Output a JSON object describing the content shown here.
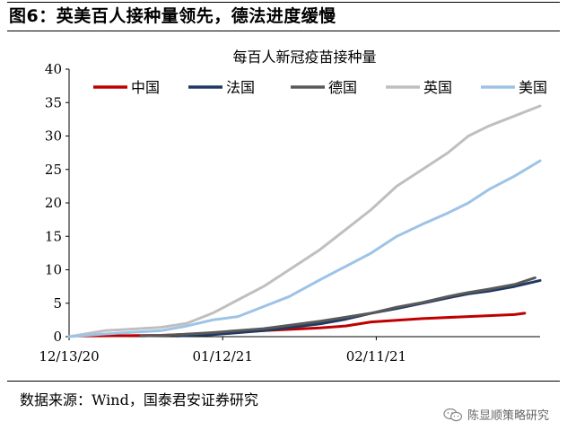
{
  "header": {
    "title": "图6：英美百人接种量领先，德法进度缓慢"
  },
  "source": {
    "text": "数据来源：Wind，国泰君安证券研究"
  },
  "watermark": {
    "text": "陈显顺策略研究",
    "icon": "wechat-icon"
  },
  "chart_data": {
    "type": "line",
    "title": "每百人新冠疫苗接种量",
    "xlabel": "",
    "ylabel": "",
    "x_range": [
      "2020-12-13",
      "2021-03-15"
    ],
    "xticks": [
      "2020-12-13",
      "2021-01-12",
      "2021-02-11"
    ],
    "xtick_labels": [
      "12/13/20",
      "01/12/21",
      "02/11/21"
    ],
    "ylim": [
      0,
      40
    ],
    "yticks": [
      0,
      5,
      10,
      15,
      20,
      25,
      30,
      35,
      40
    ],
    "grid": false,
    "legend": "top",
    "series": [
      {
        "name": "中国",
        "color": "#c00000",
        "points": [
          [
            "2020-12-15",
            0.1
          ],
          [
            "2020-12-31",
            0.2
          ],
          [
            "2021-01-10",
            0.5
          ],
          [
            "2021-01-20",
            0.9
          ],
          [
            "2021-01-31",
            1.3
          ],
          [
            "2021-02-05",
            1.6
          ],
          [
            "2021-02-10",
            2.2
          ],
          [
            "2021-02-20",
            2.7
          ],
          [
            "2021-03-01",
            3.0
          ],
          [
            "2021-03-10",
            3.3
          ],
          [
            "2021-03-12",
            3.5
          ]
        ]
      },
      {
        "name": "法国",
        "color": "#1f3864",
        "points": [
          [
            "2021-01-03",
            0.1
          ],
          [
            "2021-01-10",
            0.3
          ],
          [
            "2021-01-20",
            0.9
          ],
          [
            "2021-01-31",
            1.9
          ],
          [
            "2021-02-05",
            2.6
          ],
          [
            "2021-02-10",
            3.5
          ],
          [
            "2021-02-15",
            4.2
          ],
          [
            "2021-02-20",
            5.0
          ],
          [
            "2021-02-25",
            5.8
          ],
          [
            "2021-03-01",
            6.4
          ],
          [
            "2021-03-05",
            6.8
          ],
          [
            "2021-03-10",
            7.5
          ],
          [
            "2021-03-15",
            8.4
          ]
        ]
      },
      {
        "name": "德国",
        "color": "#595959",
        "points": [
          [
            "2020-12-27",
            0.1
          ],
          [
            "2021-01-01",
            0.2
          ],
          [
            "2021-01-10",
            0.6
          ],
          [
            "2021-01-20",
            1.2
          ],
          [
            "2021-01-31",
            2.3
          ],
          [
            "2021-02-05",
            2.9
          ],
          [
            "2021-02-10",
            3.5
          ],
          [
            "2021-02-15",
            4.4
          ],
          [
            "2021-02-20",
            5.1
          ],
          [
            "2021-02-25",
            6.0
          ],
          [
            "2021-03-01",
            6.6
          ],
          [
            "2021-03-05",
            7.1
          ],
          [
            "2021-03-10",
            7.8
          ],
          [
            "2021-03-14",
            8.8
          ]
        ]
      },
      {
        "name": "英国",
        "color": "#bfbfbf",
        "points": [
          [
            "2020-12-13",
            0.0
          ],
          [
            "2020-12-20",
            0.9
          ],
          [
            "2020-12-31",
            1.4
          ],
          [
            "2021-01-05",
            2.0
          ],
          [
            "2021-01-10",
            3.5
          ],
          [
            "2021-01-15",
            5.5
          ],
          [
            "2021-01-20",
            7.5
          ],
          [
            "2021-01-25",
            10.0
          ],
          [
            "2021-01-31",
            13.0
          ],
          [
            "2021-02-05",
            16.0
          ],
          [
            "2021-02-10",
            19.0
          ],
          [
            "2021-02-15",
            22.5
          ],
          [
            "2021-02-20",
            25.0
          ],
          [
            "2021-02-25",
            27.5
          ],
          [
            "2021-03-01",
            30.0
          ],
          [
            "2021-03-05",
            31.5
          ],
          [
            "2021-03-10",
            33.0
          ],
          [
            "2021-03-15",
            34.5
          ]
        ]
      },
      {
        "name": "美国",
        "color": "#9dc3e6",
        "points": [
          [
            "2020-12-13",
            0.0
          ],
          [
            "2020-12-20",
            0.4
          ],
          [
            "2020-12-31",
            0.9
          ],
          [
            "2021-01-05",
            1.6
          ],
          [
            "2021-01-10",
            2.5
          ],
          [
            "2021-01-15",
            3.0
          ],
          [
            "2021-01-20",
            4.5
          ],
          [
            "2021-01-25",
            6.0
          ],
          [
            "2021-01-31",
            8.5
          ],
          [
            "2021-02-05",
            10.5
          ],
          [
            "2021-02-10",
            12.5
          ],
          [
            "2021-02-15",
            15.0
          ],
          [
            "2021-02-20",
            16.8
          ],
          [
            "2021-02-25",
            18.5
          ],
          [
            "2021-03-01",
            20.0
          ],
          [
            "2021-03-05",
            22.0
          ],
          [
            "2021-03-10",
            24.0
          ],
          [
            "2021-03-15",
            26.3
          ]
        ]
      }
    ]
  }
}
